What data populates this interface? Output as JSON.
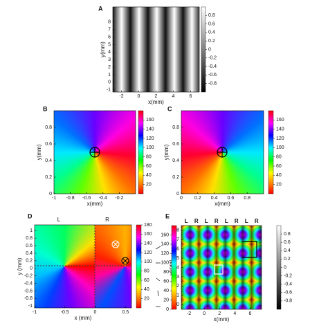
{
  "chart_data": [
    {
      "type": "heatmap",
      "panel": "A",
      "xlabel": "x(mm)",
      "ylabel": "y(mm)",
      "xlim": [
        -3,
        7
      ],
      "ylim": [
        -1.3,
        10
      ],
      "xticks": [
        -2,
        0,
        2,
        4,
        6
      ],
      "yticks": [
        -1,
        0,
        1,
        2,
        3,
        4,
        5,
        6,
        7,
        8
      ],
      "colorbars": [
        {
          "colormap": "gray",
          "lim": [
            -1,
            1
          ],
          "ticks": [
            -0.8,
            -0.6,
            -0.4,
            -0.2,
            0,
            0.2,
            0.4,
            0.6,
            0.8
          ]
        }
      ]
    },
    {
      "type": "heatmap",
      "panel": "B",
      "xlabel": "x(mm)",
      "ylabel": "y(mm)",
      "xlim": [
        -1,
        0
      ],
      "ylim": [
        0,
        1
      ],
      "xticks": [
        -1,
        -0.8,
        -0.6,
        -0.4,
        -0.2
      ],
      "yticks": [
        0,
        0.2,
        0.4,
        0.6,
        0.8
      ],
      "colorbars": [
        {
          "colormap": "hsv",
          "lim": [
            0,
            180
          ],
          "ticks": [
            20,
            40,
            60,
            80,
            100,
            120,
            140,
            160
          ]
        }
      ]
    },
    {
      "type": "heatmap",
      "panel": "C",
      "xlabel": "x(mm)",
      "ylabel": "y(mm)",
      "xlim": [
        0,
        1
      ],
      "ylim": [
        0,
        1
      ],
      "xticks": [
        0,
        0.2,
        0.4,
        0.6,
        0.8
      ],
      "yticks": [
        0,
        0.2,
        0.4,
        0.6,
        0.8
      ],
      "colorbars": [
        {
          "colormap": "hsv",
          "lim": [
            0,
            180
          ],
          "ticks": [
            20,
            40,
            60,
            80,
            100,
            120,
            140,
            160
          ]
        }
      ]
    },
    {
      "type": "heatmap",
      "panel": "D",
      "xlabel": "x (mm)",
      "ylabel": "y (mm)",
      "xlim": [
        -1,
        0.6
      ],
      "ylim": [
        -1.05,
        1.15
      ],
      "xticks": [
        -1,
        -0.5,
        0,
        0.5
      ],
      "yticks": [
        -1,
        -0.8,
        -0.6,
        -0.4,
        -0.2,
        0,
        0.2,
        0.4,
        0.6,
        0.8,
        1
      ],
      "top_labels": [
        "L",
        "R"
      ],
      "colorbars": [
        {
          "colormap": "hsv",
          "lim": [
            0,
            180
          ],
          "ticks": [
            20,
            40,
            60,
            80,
            100,
            120,
            140,
            160,
            180
          ]
        }
      ]
    },
    {
      "type": "heatmap",
      "panel": "E",
      "xlabel": "x(mm)",
      "ylabel": "y(mm)",
      "xlim": [
        -3,
        7.5
      ],
      "ylim": [
        -0.5,
        8.5
      ],
      "xticks": [
        -2,
        0,
        2,
        4,
        6
      ],
      "yticks": [
        0,
        1,
        2,
        3,
        4,
        5,
        6,
        7,
        8
      ],
      "top_labels": [
        "L",
        "R",
        "L",
        "R",
        "L",
        "R",
        "L",
        "R"
      ],
      "colorbars": [
        {
          "colormap": "hsv",
          "lim": [
            0,
            180
          ],
          "ticks": [
            0,
            20,
            40,
            60,
            80,
            100,
            120,
            140,
            160
          ]
        },
        {
          "colormap": "gray",
          "lim": [
            -1,
            1
          ],
          "ticks": [
            -0.8,
            -0.6,
            -0.4,
            -0.2,
            0,
            0.2,
            0.4,
            0.6,
            0.8
          ]
        }
      ]
    }
  ]
}
